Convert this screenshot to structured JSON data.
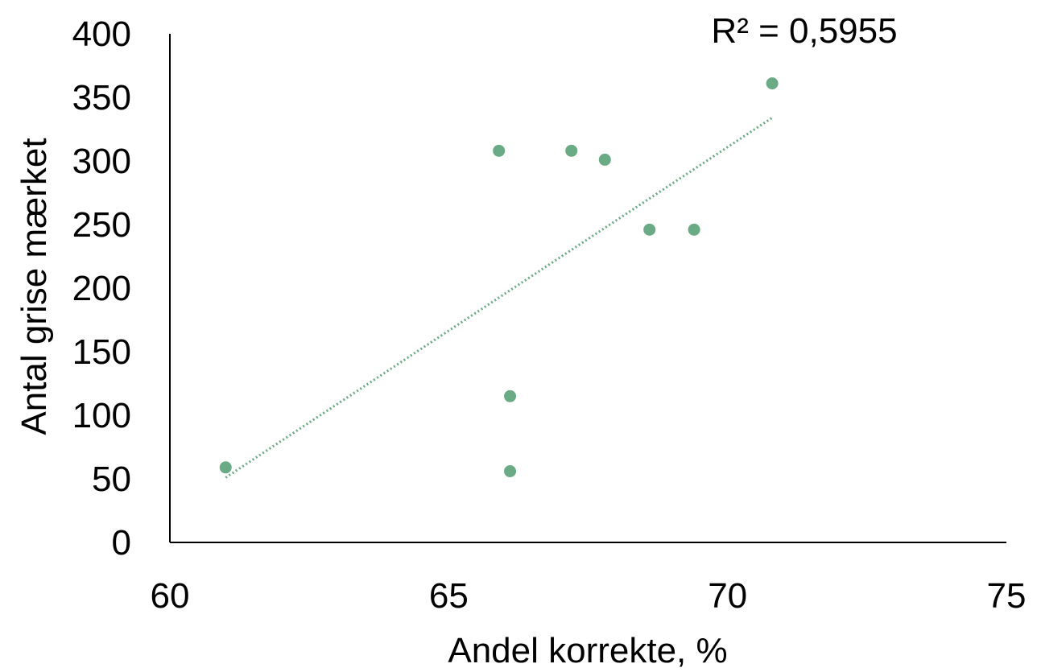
{
  "chart_data": {
    "type": "scatter",
    "title": "",
    "xlabel": "Andel korrekte, %",
    "ylabel": "Antal grise mærket",
    "xlim": [
      60,
      75
    ],
    "ylim": [
      0,
      400
    ],
    "x_ticks": [
      "60",
      "65",
      "70",
      "75"
    ],
    "y_ticks": [
      "0",
      "50",
      "100",
      "150",
      "200",
      "250",
      "300",
      "350",
      "400"
    ],
    "grid": false,
    "legend": "none",
    "series": [
      {
        "color": "#6aaa84",
        "points": [
          {
            "x": 61.0,
            "y": 59
          },
          {
            "x": 65.9,
            "y": 308
          },
          {
            "x": 66.1,
            "y": 115
          },
          {
            "x": 66.1,
            "y": 56
          },
          {
            "x": 67.2,
            "y": 308
          },
          {
            "x": 67.8,
            "y": 301
          },
          {
            "x": 68.6,
            "y": 246
          },
          {
            "x": 69.4,
            "y": 246
          },
          {
            "x": 70.8,
            "y": 361
          }
        ]
      }
    ],
    "trendline": {
      "type": "linear",
      "style": "dotted",
      "color": "#6aaa84",
      "x_start": 61.0,
      "y_start": 51,
      "x_end": 70.8,
      "y_end": 334
    },
    "annotation": "R² = 0,5955"
  }
}
